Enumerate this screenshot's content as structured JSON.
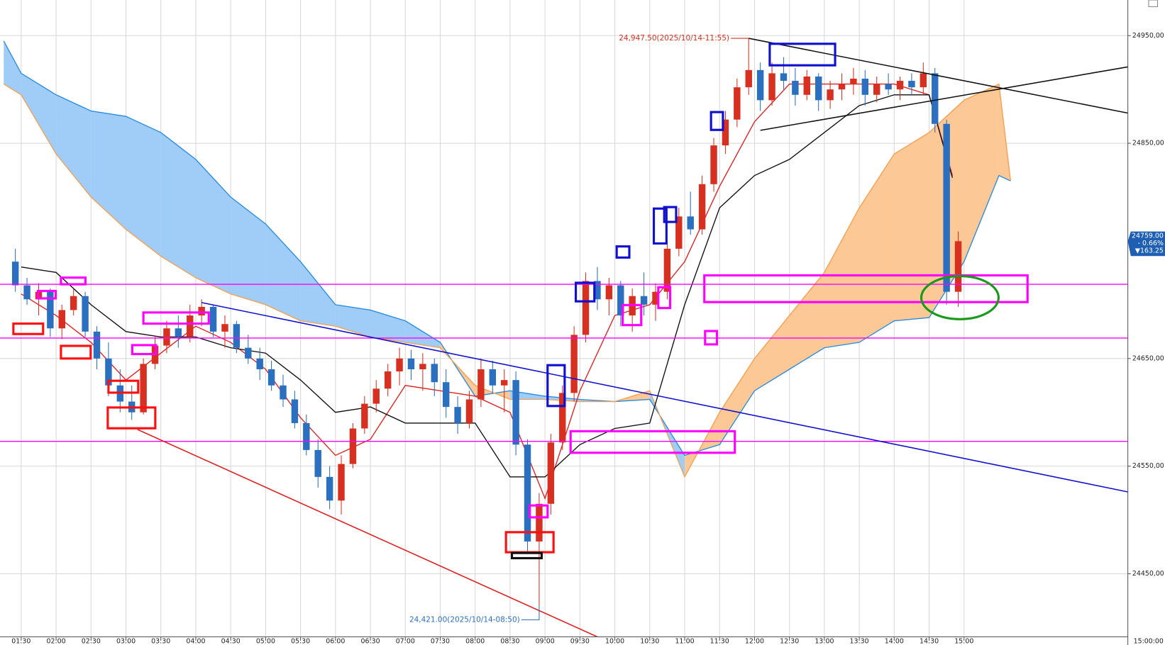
{
  "chart_data": {
    "type": "candlestick",
    "ylim": [
      24391.4,
      24983.1
    ],
    "yticks": [
      {
        "value": 24950,
        "label": "24950,00"
      },
      {
        "value": 24850,
        "label": "24850,00"
      },
      {
        "value": 24650,
        "label": "24650,00"
      },
      {
        "value": 24550,
        "label": "24550,00"
      },
      {
        "value": 24450,
        "label": "24450,00"
      }
    ],
    "xticks": [
      "01:30",
      "02:00",
      "02:30",
      "03:00",
      "03:30",
      "04:00",
      "04:30",
      "05:00",
      "05:30",
      "06:00",
      "06:30",
      "07:00",
      "07:30",
      "08:00",
      "08:30",
      "09:00",
      "09:30",
      "10:00",
      "10:30",
      "11:00",
      "11:30",
      "12:00",
      "12:30",
      "13:00",
      "13:30",
      "14:00",
      "14:30",
      "15:00"
    ],
    "corner_label": "15:00:00",
    "grid": true,
    "up_color": "#d83020",
    "down_color": "#2a6fc0",
    "x": [
      "01:20",
      "01:30",
      "01:40",
      "01:50",
      "02:00",
      "02:10",
      "02:20",
      "02:30",
      "02:40",
      "02:50",
      "03:00",
      "03:10",
      "03:20",
      "03:30",
      "03:40",
      "03:50",
      "04:00",
      "04:10",
      "04:20",
      "04:30",
      "04:40",
      "04:50",
      "05:00",
      "05:10",
      "05:20",
      "05:30",
      "05:40",
      "05:50",
      "06:00",
      "06:10",
      "06:20",
      "06:30",
      "06:40",
      "06:50",
      "07:00",
      "07:10",
      "07:20",
      "07:30",
      "07:40",
      "07:50",
      "08:00",
      "08:10",
      "08:20",
      "08:30",
      "08:40",
      "08:50",
      "09:00",
      "09:10",
      "09:20",
      "09:30",
      "09:40",
      "09:50",
      "10:00",
      "10:10",
      "10:20",
      "10:30",
      "10:40",
      "10:50",
      "11:00",
      "11:10",
      "11:20",
      "11:30",
      "11:40",
      "11:50",
      "12:00",
      "12:10",
      "12:20",
      "12:30",
      "12:40",
      "12:50",
      "13:00",
      "13:10",
      "13:20",
      "13:30",
      "13:40",
      "13:50",
      "14:00",
      "14:10",
      "14:20",
      "14:30",
      "14:40",
      "14:50"
    ],
    "candles": [
      [
        24740,
        24752,
        24712,
        24718
      ],
      [
        24718,
        24725,
        24700,
        24705
      ],
      [
        24705,
        24720,
        24690,
        24712
      ],
      [
        24712,
        24715,
        24670,
        24678
      ],
      [
        24678,
        24700,
        24668,
        24695
      ],
      [
        24695,
        24715,
        24690,
        24708
      ],
      [
        24708,
        24712,
        24670,
        24675
      ],
      [
        24675,
        24680,
        24640,
        24650
      ],
      [
        24650,
        24665,
        24615,
        24625
      ],
      [
        24625,
        24640,
        24600,
        24610
      ],
      [
        24610,
        24625,
        24593,
        24600
      ],
      [
        24600,
        24650,
        24598,
        24645
      ],
      [
        24645,
        24670,
        24640,
        24662
      ],
      [
        24662,
        24685,
        24655,
        24678
      ],
      [
        24678,
        24690,
        24660,
        24670
      ],
      [
        24670,
        24700,
        24665,
        24690
      ],
      [
        24690,
        24705,
        24680,
        24698
      ],
      [
        24698,
        24700,
        24670,
        24675
      ],
      [
        24675,
        24690,
        24660,
        24682
      ],
      [
        24682,
        24685,
        24655,
        24660
      ],
      [
        24660,
        24672,
        24645,
        24650
      ],
      [
        24650,
        24660,
        24630,
        24640
      ],
      [
        24640,
        24648,
        24620,
        24625
      ],
      [
        24625,
        24635,
        24605,
        24612
      ],
      [
        24612,
        24620,
        24585,
        24590
      ],
      [
        24590,
        24598,
        24560,
        24565
      ],
      [
        24565,
        24575,
        24530,
        24540
      ],
      [
        24540,
        24550,
        24510,
        24518
      ],
      [
        24518,
        24560,
        24505,
        24552
      ],
      [
        24552,
        24590,
        24548,
        24585
      ],
      [
        24585,
        24615,
        24580,
        24608
      ],
      [
        24608,
        24630,
        24600,
        24622
      ],
      [
        24622,
        24645,
        24615,
        24638
      ],
      [
        24638,
        24660,
        24625,
        24650
      ],
      [
        24650,
        24658,
        24630,
        24640
      ],
      [
        24640,
        24655,
        24620,
        24645
      ],
      [
        24645,
        24650,
        24615,
        24628
      ],
      [
        24628,
        24640,
        24595,
        24605
      ],
      [
        24605,
        24615,
        24580,
        24590
      ],
      [
        24590,
        24620,
        24585,
        24612
      ],
      [
        24612,
        24650,
        24605,
        24640
      ],
      [
        24640,
        24648,
        24618,
        24625
      ],
      [
        24625,
        24640,
        24600,
        24630
      ],
      [
        24630,
        24638,
        24560,
        24570
      ],
      [
        24570,
        24575,
        24470,
        24480
      ],
      [
        24480,
        24525,
        24421,
        24515
      ],
      [
        24515,
        24580,
        24505,
        24572
      ],
      [
        24572,
        24625,
        24565,
        24618
      ],
      [
        24618,
        24680,
        24610,
        24672
      ],
      [
        24672,
        24730,
        24665,
        24722
      ],
      [
        24722,
        24735,
        24695,
        24705
      ],
      [
        24705,
        24725,
        24690,
        24718
      ],
      [
        24718,
        24722,
        24680,
        24690
      ],
      [
        24690,
        24715,
        24675,
        24708
      ],
      [
        24708,
        24730,
        24690,
        24700
      ],
      [
        24700,
        24720,
        24685,
        24712
      ],
      [
        24712,
        24760,
        24705,
        24752
      ],
      [
        24752,
        24790,
        24745,
        24782
      ],
      [
        24782,
        24805,
        24765,
        24770
      ],
      [
        24770,
        24820,
        24765,
        24812
      ],
      [
        24812,
        24855,
        24805,
        24848
      ],
      [
        24848,
        24880,
        24840,
        24872
      ],
      [
        24872,
        24910,
        24865,
        24902
      ],
      [
        24902,
        24947.5,
        24895,
        24918
      ],
      [
        24918,
        24925,
        24880,
        24890
      ],
      [
        24890,
        24925,
        24885,
        24915
      ],
      [
        24915,
        24930,
        24900,
        24908
      ],
      [
        24908,
        24920,
        24885,
        24895
      ],
      [
        24895,
        24918,
        24890,
        24912
      ],
      [
        24912,
        24915,
        24880,
        24890
      ],
      [
        24890,
        24908,
        24882,
        24900
      ],
      [
        24900,
        24915,
        24890,
        24905
      ],
      [
        24905,
        24920,
        24895,
        24910
      ],
      [
        24910,
        24918,
        24885,
        24895
      ],
      [
        24895,
        24912,
        24888,
        24905
      ],
      [
        24905,
        24915,
        24895,
        24900
      ],
      [
        24900,
        24912,
        24890,
        24908
      ],
      [
        24908,
        24915,
        24895,
        24902
      ],
      [
        24902,
        24925,
        24895,
        24915
      ],
      [
        24915,
        24920,
        24860,
        24868
      ],
      [
        24868,
        24872,
        24700,
        24712
      ],
      [
        24712,
        24768,
        24698,
        24759
      ]
    ],
    "cloud": {
      "up_color": "#9fcdf8",
      "down_color": "#fbc896",
      "span_a_color": "#2a8ce0",
      "span_b_color": "#f5a050",
      "x": [
        "01:15",
        "01:30",
        "02:00",
        "02:30",
        "03:00",
        "03:30",
        "04:00",
        "04:30",
        "05:00",
        "05:30",
        "06:00",
        "06:30",
        "07:00",
        "07:30",
        "08:00",
        "08:30",
        "09:00",
        "09:30",
        "10:00",
        "10:30",
        "11:00",
        "11:30",
        "12:00",
        "12:30",
        "13:00",
        "13:30",
        "14:00",
        "14:30",
        "15:00",
        "15:30",
        "15:40"
      ],
      "span_a": [
        24945,
        24915,
        24895,
        24880,
        24875,
        24860,
        24835,
        24800,
        24775,
        24740,
        24700,
        24695,
        24685,
        24665,
        24615,
        24620,
        24615,
        24612,
        24610,
        24612,
        24560,
        24570,
        24620,
        24640,
        24660,
        24665,
        24685,
        24688,
        24740,
        24820,
        24815
      ],
      "span_b": [
        24905,
        24895,
        24840,
        24800,
        24770,
        24745,
        24725,
        24710,
        24700,
        24685,
        24680,
        24670,
        24665,
        24660,
        24625,
        24612,
        24612,
        24610,
        24610,
        24620,
        24540,
        24600,
        24650,
        24690,
        24730,
        24790,
        24840,
        24860,
        24890,
        24905,
        24815
      ]
    },
    "lines": [
      {
        "color": "#e02020",
        "x": [
          "01:30",
          "02:00",
          "02:30",
          "03:00",
          "03:30",
          "04:00",
          "04:30",
          "05:00",
          "05:30",
          "06:00",
          "06:30",
          "07:00",
          "07:30",
          "08:00",
          "08:30",
          "09:00",
          "09:30",
          "10:00",
          "10:30",
          "11:00",
          "11:30",
          "12:00",
          "12:30",
          "13:00",
          "13:30",
          "14:00",
          "14:30",
          "14:50"
        ],
        "values": [
          24710,
          24690,
          24665,
          24630,
          24655,
          24680,
          24665,
          24640,
          24595,
          24560,
          24575,
          24625,
          24620,
          24615,
          24600,
          24520,
          24620,
          24690,
          24700,
          24740,
          24810,
          24870,
          24905,
          24905,
          24905,
          24905,
          24895,
          24820
        ]
      },
      {
        "color": "#111111",
        "x": [
          "01:30",
          "02:00",
          "02:30",
          "03:00",
          "03:30",
          "04:00",
          "04:30",
          "05:00",
          "05:30",
          "06:00",
          "06:30",
          "07:00",
          "07:30",
          "08:00",
          "08:30",
          "09:00",
          "09:30",
          "10:00",
          "10:30",
          "11:00",
          "11:30",
          "12:00",
          "12:30",
          "13:00",
          "13:30",
          "14:00",
          "14:30",
          "14:50"
        ],
        "values": [
          24735,
          24730,
          24700,
          24675,
          24670,
          24670,
          24660,
          24655,
          24630,
          24600,
          24605,
          24590,
          24590,
          24590,
          24540,
          24540,
          24570,
          24585,
          24590,
          24700,
          24790,
          24820,
          24835,
          24860,
          24885,
          24895,
          24895,
          24818
        ]
      }
    ],
    "hlines": {
      "color": "#ff00ff",
      "values": [
        24719,
        24669,
        24573
      ]
    },
    "trendlines": [
      {
        "color": "#1010d0",
        "x": [
          "04:05",
          "17:21"
        ],
        "values": [
          24702,
          24526
        ]
      },
      {
        "color": "#e02020",
        "x": [
          "03:10",
          "09:45"
        ],
        "values": [
          24584,
          24391.4
        ]
      },
      {
        "color": "#111111",
        "x": [
          "11:55",
          "17:21"
        ],
        "values": [
          24947.5,
          24878
        ]
      },
      {
        "color": "#111111",
        "x": [
          "12:05",
          "17:21"
        ],
        "values": [
          24862,
          24921
        ]
      }
    ],
    "annotations": [
      {
        "text": "24,947.50(2025/10/14-11:55)",
        "value": 24947.5,
        "color": "#d83020"
      },
      {
        "text": "24,421.00(2025/10/14-08:50)",
        "value": 24421,
        "color": "#2a6fc0"
      }
    ],
    "price_tag": {
      "price": "24759.00",
      "change_pct": "- 0.66%",
      "change": "▼163.25",
      "value": 24759
    }
  }
}
